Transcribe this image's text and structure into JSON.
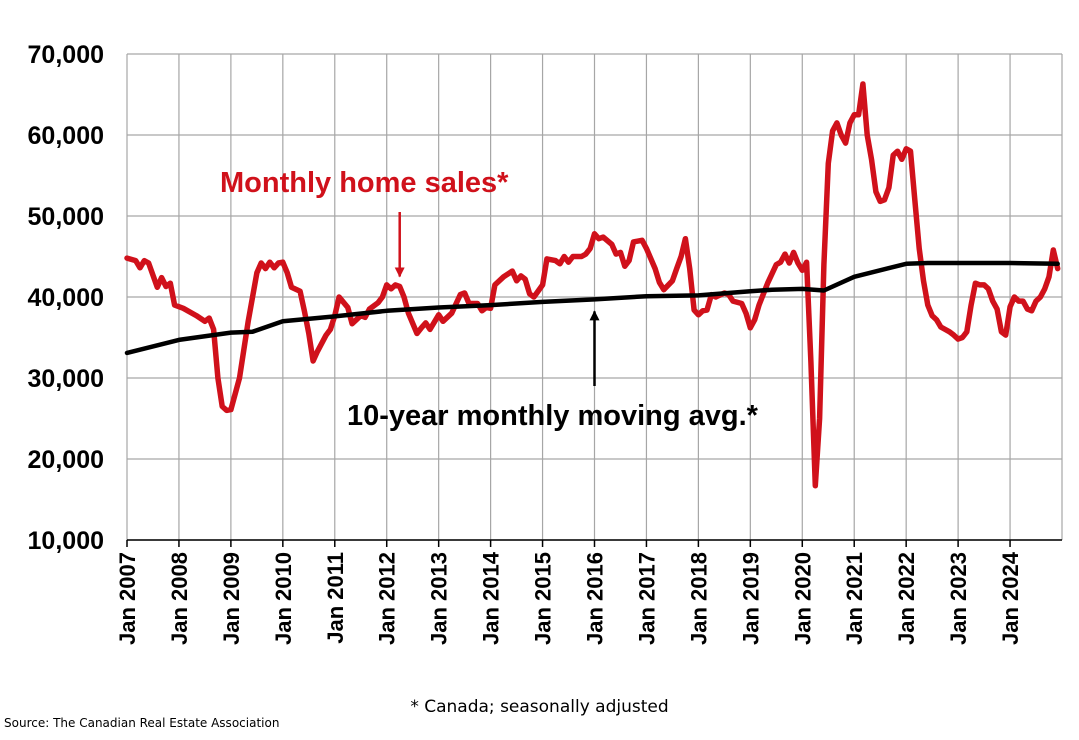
{
  "chart_data": {
    "type": "line",
    "title": "",
    "xlabel": "",
    "ylabel": "",
    "ylim": [
      10000,
      70000
    ],
    "y_ticks": [
      "70,000",
      "60,000",
      "50,000",
      "40,000",
      "30,000",
      "20,000",
      "10,000"
    ],
    "x_range": [
      "2007-01",
      "2024-12"
    ],
    "x_ticks": [
      "Jan 2007",
      "Jan 2008",
      "Jan 2009",
      "Jan 2010",
      "Jan 2011",
      "Jan 2012",
      "Jan 2013",
      "Jan 2014",
      "Jan 2015",
      "Jan 2016",
      "Jan 2017",
      "Jan 2018",
      "Jan 2019",
      "Jan 2020",
      "Jan 2021",
      "Jan 2022",
      "Jan 2023",
      "Jan 2024"
    ],
    "grid": true,
    "colors": {
      "sales": "#d0111b",
      "average": "#000000"
    },
    "series": [
      {
        "name": "Monthly home sales*",
        "points": [
          [
            "2007-01",
            44800
          ],
          [
            "2007-03",
            44500
          ],
          [
            "2007-04",
            43600
          ],
          [
            "2007-05",
            44500
          ],
          [
            "2007-06",
            44200
          ],
          [
            "2007-08",
            41200
          ],
          [
            "2007-09",
            42400
          ],
          [
            "2007-10",
            41300
          ],
          [
            "2007-11",
            41700
          ],
          [
            "2007-12",
            39000
          ],
          [
            "2008-02",
            38600
          ],
          [
            "2008-05",
            37700
          ],
          [
            "2008-07",
            37000
          ],
          [
            "2008-08",
            37400
          ],
          [
            "2008-09",
            36000
          ],
          [
            "2008-10",
            30000
          ],
          [
            "2008-11",
            26500
          ],
          [
            "2008-12",
            26000
          ],
          [
            "2009-01",
            26100
          ],
          [
            "2009-03",
            30000
          ],
          [
            "2009-05",
            37000
          ],
          [
            "2009-07",
            43000
          ],
          [
            "2009-08",
            44200
          ],
          [
            "2009-09",
            43500
          ],
          [
            "2009-10",
            44300
          ],
          [
            "2009-11",
            43600
          ],
          [
            "2009-12",
            44200
          ],
          [
            "2010-01",
            44300
          ],
          [
            "2010-02",
            43000
          ],
          [
            "2010-03",
            41200
          ],
          [
            "2010-05",
            40700
          ],
          [
            "2010-06",
            38200
          ],
          [
            "2010-07",
            35500
          ],
          [
            "2010-08",
            32100
          ],
          [
            "2010-09",
            33300
          ],
          [
            "2010-11",
            35300
          ],
          [
            "2010-12",
            36000
          ],
          [
            "2011-01",
            37700
          ],
          [
            "2011-02",
            40000
          ],
          [
            "2011-04",
            38700
          ],
          [
            "2011-05",
            36700
          ],
          [
            "2011-06",
            37200
          ],
          [
            "2011-07",
            37700
          ],
          [
            "2011-08",
            37500
          ],
          [
            "2011-09",
            38500
          ],
          [
            "2011-11",
            39300
          ],
          [
            "2011-12",
            40000
          ],
          [
            "2012-01",
            41500
          ],
          [
            "2012-02",
            41000
          ],
          [
            "2012-03",
            41500
          ],
          [
            "2012-04",
            41300
          ],
          [
            "2012-05",
            40000
          ],
          [
            "2012-06",
            38000
          ],
          [
            "2012-08",
            35500
          ],
          [
            "2012-09",
            36200
          ],
          [
            "2012-10",
            36800
          ],
          [
            "2012-11",
            36000
          ],
          [
            "2013-01",
            37800
          ],
          [
            "2013-02",
            37000
          ],
          [
            "2013-04",
            38000
          ],
          [
            "2013-06",
            40300
          ],
          [
            "2013-07",
            40500
          ],
          [
            "2013-08",
            39200
          ],
          [
            "2013-10",
            39200
          ],
          [
            "2013-11",
            38300
          ],
          [
            "2013-12",
            38700
          ],
          [
            "2014-01",
            38600
          ],
          [
            "2014-02",
            41500
          ],
          [
            "2014-04",
            42500
          ],
          [
            "2014-06",
            43200
          ],
          [
            "2014-07",
            42000
          ],
          [
            "2014-08",
            42600
          ],
          [
            "2014-09",
            42200
          ],
          [
            "2014-10",
            40400
          ],
          [
            "2014-11",
            40000
          ],
          [
            "2015-01",
            41500
          ],
          [
            "2015-02",
            44700
          ],
          [
            "2015-04",
            44500
          ],
          [
            "2015-05",
            44100
          ],
          [
            "2015-06",
            45000
          ],
          [
            "2015-07",
            44300
          ],
          [
            "2015-08",
            45000
          ],
          [
            "2015-10",
            45000
          ],
          [
            "2015-11",
            45300
          ],
          [
            "2015-12",
            46000
          ],
          [
            "2016-01",
            47800
          ],
          [
            "2016-02",
            47200
          ],
          [
            "2016-03",
            47400
          ],
          [
            "2016-05",
            46500
          ],
          [
            "2016-06",
            45300
          ],
          [
            "2016-07",
            45500
          ],
          [
            "2016-08",
            43800
          ],
          [
            "2016-09",
            44500
          ],
          [
            "2016-10",
            46800
          ],
          [
            "2016-12",
            47000
          ],
          [
            "2017-01",
            46000
          ],
          [
            "2017-03",
            43500
          ],
          [
            "2017-04",
            41800
          ],
          [
            "2017-05",
            40900
          ],
          [
            "2017-07",
            42000
          ],
          [
            "2017-08",
            43500
          ],
          [
            "2017-09",
            45000
          ],
          [
            "2017-10",
            47200
          ],
          [
            "2017-11",
            43500
          ],
          [
            "2017-12",
            38400
          ],
          [
            "2018-01",
            37800
          ],
          [
            "2018-02",
            38300
          ],
          [
            "2018-03",
            38400
          ],
          [
            "2018-04",
            40300
          ],
          [
            "2018-05",
            40000
          ],
          [
            "2018-07",
            40500
          ],
          [
            "2018-08",
            40300
          ],
          [
            "2018-09",
            39500
          ],
          [
            "2018-11",
            39200
          ],
          [
            "2018-12",
            38000
          ],
          [
            "2019-01",
            36200
          ],
          [
            "2019-02",
            37200
          ],
          [
            "2019-03",
            39000
          ],
          [
            "2019-05",
            41700
          ],
          [
            "2019-07",
            44000
          ],
          [
            "2019-08",
            44300
          ],
          [
            "2019-09",
            45300
          ],
          [
            "2019-10",
            44200
          ],
          [
            "2019-11",
            45500
          ],
          [
            "2019-12",
            44200
          ],
          [
            "2020-01",
            43300
          ],
          [
            "2020-02",
            44300
          ],
          [
            "2020-03",
            32000
          ],
          [
            "2020-04",
            16700
          ],
          [
            "2020-05",
            25000
          ],
          [
            "2020-06",
            44000
          ],
          [
            "2020-07",
            56500
          ],
          [
            "2020-08",
            60500
          ],
          [
            "2020-09",
            61500
          ],
          [
            "2020-10",
            60000
          ],
          [
            "2020-11",
            59000
          ],
          [
            "2020-12",
            61500
          ],
          [
            "2021-01",
            62500
          ],
          [
            "2021-02",
            62500
          ],
          [
            "2021-03",
            66300
          ],
          [
            "2021-04",
            60000
          ],
          [
            "2021-05",
            57000
          ],
          [
            "2021-06",
            53000
          ],
          [
            "2021-07",
            51800
          ],
          [
            "2021-08",
            52000
          ],
          [
            "2021-09",
            53500
          ],
          [
            "2021-10",
            57500
          ],
          [
            "2021-11",
            58000
          ],
          [
            "2021-12",
            57000
          ],
          [
            "2022-01",
            58300
          ],
          [
            "2022-02",
            58000
          ],
          [
            "2022-03",
            52000
          ],
          [
            "2022-04",
            46000
          ],
          [
            "2022-05",
            42000
          ],
          [
            "2022-06",
            39000
          ],
          [
            "2022-07",
            37700
          ],
          [
            "2022-08",
            37200
          ],
          [
            "2022-09",
            36300
          ],
          [
            "2022-10",
            36000
          ],
          [
            "2022-11",
            35700
          ],
          [
            "2022-12",
            35300
          ],
          [
            "2023-01",
            34800
          ],
          [
            "2023-02",
            35000
          ],
          [
            "2023-03",
            35700
          ],
          [
            "2023-04",
            39000
          ],
          [
            "2023-05",
            41700
          ],
          [
            "2023-06",
            41500
          ],
          [
            "2023-07",
            41500
          ],
          [
            "2023-08",
            41000
          ],
          [
            "2023-09",
            39500
          ],
          [
            "2023-10",
            38500
          ],
          [
            "2023-11",
            35700
          ],
          [
            "2023-12",
            35300
          ],
          [
            "2024-01",
            38800
          ],
          [
            "2024-02",
            40000
          ],
          [
            "2024-03",
            39500
          ],
          [
            "2024-04",
            39500
          ],
          [
            "2024-05",
            38500
          ],
          [
            "2024-06",
            38300
          ],
          [
            "2024-07",
            39500
          ],
          [
            "2024-08",
            40000
          ],
          [
            "2024-09",
            41000
          ],
          [
            "2024-10",
            42500
          ],
          [
            "2024-11",
            45800
          ],
          [
            "2024-12",
            43500
          ]
        ]
      },
      {
        "name": "10-year monthly moving avg.*",
        "points": [
          [
            "2007-01",
            33100
          ],
          [
            "2008-01",
            34700
          ],
          [
            "2009-01",
            35600
          ],
          [
            "2009-06",
            35700
          ],
          [
            "2010-01",
            37000
          ],
          [
            "2011-01",
            37600
          ],
          [
            "2012-01",
            38300
          ],
          [
            "2013-01",
            38700
          ],
          [
            "2014-01",
            39000
          ],
          [
            "2015-01",
            39400
          ],
          [
            "2016-01",
            39700
          ],
          [
            "2017-01",
            40100
          ],
          [
            "2018-01",
            40200
          ],
          [
            "2019-01",
            40700
          ],
          [
            "2019-06",
            40900
          ],
          [
            "2020-01",
            41000
          ],
          [
            "2020-06",
            40800
          ],
          [
            "2021-01",
            42500
          ],
          [
            "2022-01",
            44100
          ],
          [
            "2022-06",
            44200
          ],
          [
            "2023-01",
            44200
          ],
          [
            "2024-01",
            44200
          ],
          [
            "2024-12",
            44100
          ]
        ]
      }
    ],
    "annotations": [
      {
        "text": "Monthly home sales*",
        "series": 0,
        "arrow_to": [
          "2012-04",
          41300
        ]
      },
      {
        "text": "10-year monthly moving avg.*",
        "series": 1,
        "arrow_to": [
          "2016-01",
          39700
        ]
      }
    ]
  },
  "footnote": "* Canada; seasonally adjusted",
  "source": "Source: The Canadian Real Estate Association"
}
